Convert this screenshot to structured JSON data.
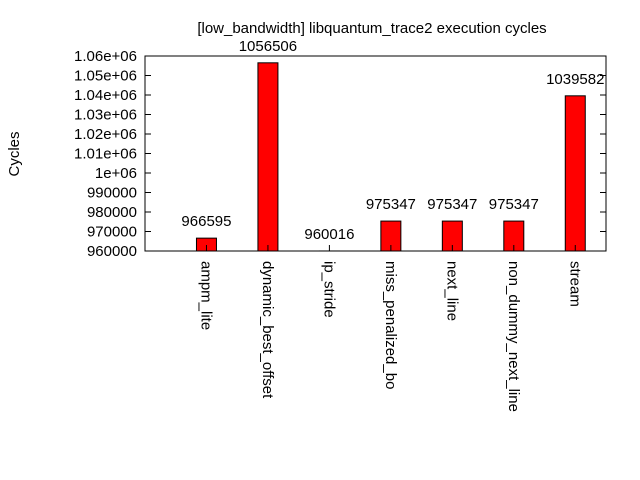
{
  "chart_data": {
    "type": "bar",
    "title": "[low_bandwidth] libquantum_trace2 execution cycles",
    "xlabel": "",
    "ylabel": "Cycles",
    "categories": [
      "ampm_lite",
      "dynamic_best_offset",
      "ip_stride",
      "miss_penalized_bo",
      "next_line",
      "non_dummy_next_line",
      "stream"
    ],
    "values": [
      966595,
      1056506,
      960016,
      975347,
      975347,
      975347,
      1039582
    ],
    "data_labels": [
      "966595",
      "1056506",
      "960016",
      "975347",
      "975347",
      "975347",
      "1039582"
    ],
    "ylim": [
      960000,
      1060000
    ],
    "yticks": [
      960000,
      970000,
      980000,
      990000,
      1000000,
      1010000,
      1020000,
      1030000,
      1040000,
      1050000,
      1060000
    ],
    "ytick_labels": [
      "960000",
      "970000",
      "980000",
      "990000",
      "1e+06",
      "1.01e+06",
      "1.02e+06",
      "1.03e+06",
      "1.04e+06",
      "1.05e+06",
      "1.06e+06"
    ],
    "bar_color": "#ff0000",
    "grid": false,
    "legend": "none"
  }
}
